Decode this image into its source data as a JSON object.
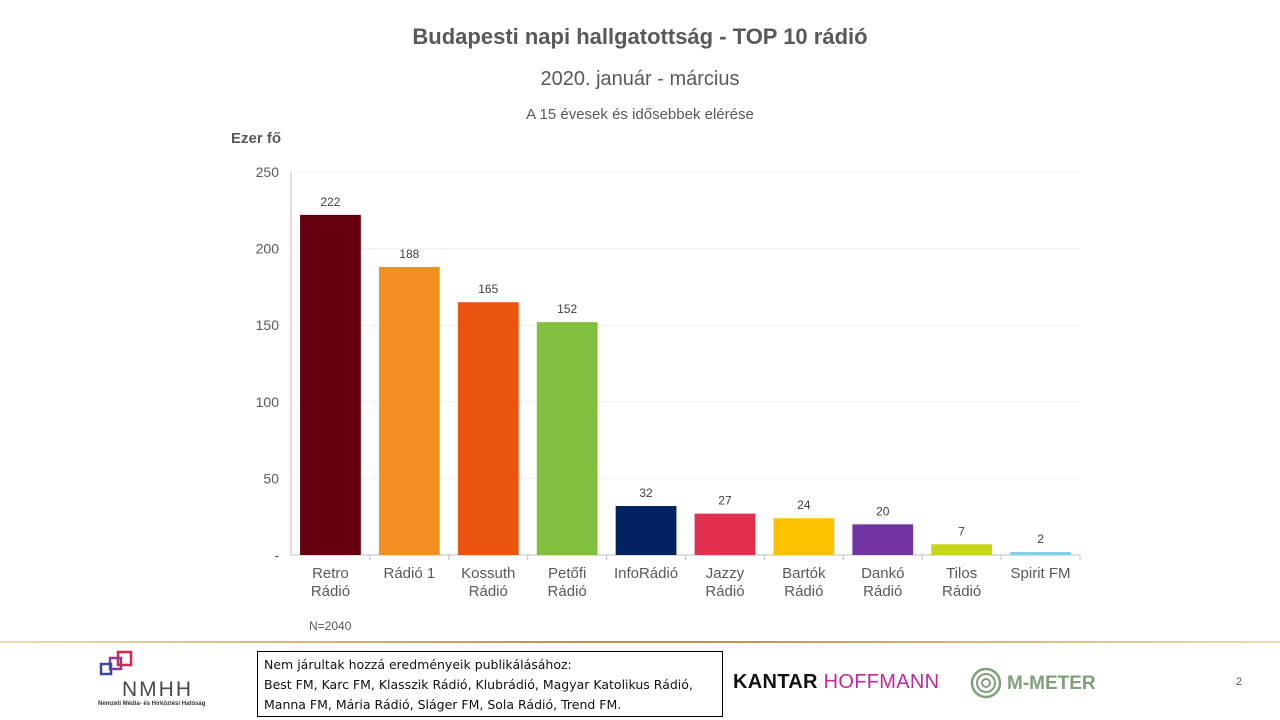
{
  "chart_data": {
    "type": "bar",
    "title": "Budapesti napi hallgatottság - TOP 10 rádió",
    "subtitle": "2020. január  - március",
    "subsubtitle": "A 15 évesek és idősebbek elérése",
    "ylabel": "Ezer fő",
    "xlabel": "",
    "ylim": [
      0,
      250
    ],
    "yticks": [
      "-",
      "50",
      "100",
      "150",
      "200",
      "250"
    ],
    "grid": true,
    "categories": [
      [
        "Retro",
        "Rádió"
      ],
      [
        "Rádió 1"
      ],
      [
        "Kossuth",
        "Rádió"
      ],
      [
        "Petőfi",
        "Rádió"
      ],
      [
        "InfoRádió"
      ],
      [
        "Jazzy",
        "Rádió"
      ],
      [
        "Bartók",
        "Rádió"
      ],
      [
        "Dankó",
        "Rádió"
      ],
      [
        "Tilos",
        "Rádió"
      ],
      [
        "Spirit FM"
      ]
    ],
    "values": [
      222,
      188,
      165,
      152,
      32,
      27,
      24,
      20,
      7,
      2
    ],
    "colors": [
      "#66000f",
      "#f39021",
      "#eb540e",
      "#80c03e",
      "#022261",
      "#e3304e",
      "#fdc100",
      "#7234a0",
      "#c5d61b",
      "#7fd3e6"
    ],
    "note": "N=2040"
  },
  "footer": {
    "nmhh": {
      "word": "NMHH",
      "sub": "Nemzeti Média- és Hírközlési Hatóság"
    },
    "box_lines": [
      "Nem járultak hozzá eredményeik publikálásához:",
      "Best FM, Karc FM,  Klasszik Rádió, Klubrádió, Magyar Katolikus Rádió,",
      "Manna FM,  Mária Rádió, Sláger FM, Sola Rádió, Trend FM."
    ],
    "kantar_a": "KANTAR",
    "kantar_b": " HOFFMANN",
    "mmeter": "M-METER",
    "page": "2",
    "accent": "#b9944a"
  }
}
